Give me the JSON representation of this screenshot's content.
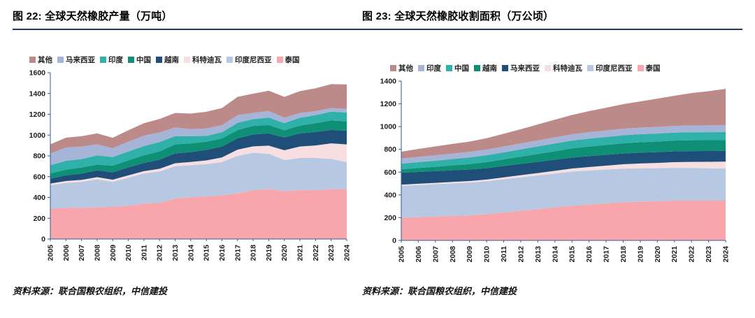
{
  "footer": {
    "source_left": "资料来源：联合国粮农组织，中信建投",
    "source_right": "资料来源：联合国粮农组织，中信建投"
  },
  "chart_data": [
    {
      "type": "area",
      "stacked": true,
      "title": "图 22:  全球天然橡胶产量（万吨）",
      "ylabel": "万吨",
      "ylim": [
        0,
        1600
      ],
      "ytick_step": 200,
      "grid": false,
      "legend_position": "top",
      "axis_color": "#2e5d9b",
      "x": [
        "2005",
        "2006",
        "2007",
        "2008",
        "2009",
        "2010",
        "2011",
        "2012",
        "2013",
        "2014",
        "2015",
        "2016",
        "2017",
        "2018",
        "2019",
        "2020",
        "2021",
        "2022",
        "2023",
        "2024"
      ],
      "series": [
        {
          "name": "其他",
          "color": "#bd8a8a",
          "values": [
            90,
            95,
            100,
            105,
            100,
            110,
            120,
            130,
            140,
            150,
            160,
            165,
            175,
            185,
            195,
            200,
            210,
            220,
            230,
            235
          ]
        },
        {
          "name": "马来西亚",
          "color": "#a6b4d8",
          "values": [
            112,
            128,
            120,
            107,
            86,
            94,
            100,
            92,
            83,
            67,
            72,
            67,
            74,
            60,
            64,
            52,
            47,
            38,
            35,
            35
          ]
        },
        {
          "name": "印度",
          "color": "#2fb0a8",
          "values": [
            77,
            85,
            81,
            88,
            82,
            85,
            89,
            90,
            80,
            70,
            56,
            62,
            69,
            65,
            71,
            69,
            75,
            78,
            85,
            85
          ]
        },
        {
          "name": "中国",
          "color": "#0f8f76",
          "values": [
            51,
            54,
            59,
            55,
            64,
            69,
            73,
            80,
            86,
            84,
            79,
            77,
            80,
            82,
            81,
            69,
            75,
            85,
            90,
            90
          ]
        },
        {
          "name": "越南",
          "color": "#1f4e79",
          "values": [
            47,
            55,
            60,
            66,
            71,
            75,
            79,
            87,
            95,
            95,
            101,
            104,
            109,
            114,
            118,
            123,
            126,
            129,
            130,
            132
          ]
        },
        {
          "name": "科特迪瓦",
          "color": "#f7dfe1",
          "values": [
            17,
            18,
            19,
            20,
            21,
            23,
            23,
            26,
            29,
            31,
            36,
            45,
            60,
            62,
            78,
            94,
            110,
            120,
            150,
            170
          ]
        },
        {
          "name": "印度尼西亚",
          "color": "#b6c8e2",
          "values": [
            227,
            240,
            250,
            270,
            240,
            270,
            290,
            300,
            310,
            310,
            310,
            320,
            360,
            360,
            340,
            300,
            310,
            310,
            290,
            260
          ]
        },
        {
          "name": "泰国",
          "color": "#f8a5ac",
          "values": [
            290,
            300,
            300,
            305,
            310,
            320,
            340,
            350,
            390,
            400,
            410,
            420,
            440,
            470,
            480,
            460,
            470,
            470,
            480,
            480
          ]
        }
      ]
    },
    {
      "type": "area",
      "stacked": true,
      "title": "图 23:  全球天然橡胶收割面积（万公顷）",
      "ylabel": "万公顷",
      "ylim": [
        0,
        1400
      ],
      "ytick_step": 200,
      "grid": false,
      "legend_position": "top",
      "axis_color": "#2e5d9b",
      "x": [
        "2005",
        "2006",
        "2007",
        "2008",
        "2009",
        "2010",
        "2011",
        "2012",
        "2013",
        "2014",
        "2015",
        "2016",
        "2017",
        "2018",
        "2019",
        "2020",
        "2021",
        "2022",
        "2023",
        "2024"
      ],
      "series": [
        {
          "name": "其他",
          "color": "#bd8a8a",
          "values": [
            60,
            70,
            78,
            85,
            90,
            100,
            112,
            125,
            140,
            155,
            170,
            185,
            200,
            215,
            230,
            248,
            265,
            285,
            300,
            320
          ]
        },
        {
          "name": "印度",
          "color": "#a6b4d8",
          "values": [
            45,
            46,
            47,
            48,
            49,
            50,
            51,
            52,
            53,
            54,
            55,
            56,
            57,
            58,
            58,
            59,
            59,
            60,
            60,
            60
          ]
        },
        {
          "name": "中国",
          "color": "#2fb0a8",
          "values": [
            50,
            52,
            54,
            56,
            58,
            60,
            62,
            64,
            66,
            68,
            69,
            70,
            70,
            70,
            70,
            70,
            70,
            70,
            70,
            70
          ]
        },
        {
          "name": "越南",
          "color": "#0f8f76",
          "values": [
            30,
            34,
            38,
            43,
            48,
            53,
            58,
            64,
            70,
            75,
            80,
            84,
            87,
            90,
            92,
            93,
            94,
            95,
            95,
            95
          ]
        },
        {
          "name": "马来西亚",
          "color": "#1f4e79",
          "values": [
            105,
            104,
            103,
            102,
            101,
            100,
            100,
            99,
            98,
            97,
            96,
            96,
            95,
            95,
            95,
            95,
            95,
            95,
            95,
            95
          ]
        },
        {
          "name": "科特迪瓦",
          "color": "#f7dfe1",
          "values": [
            10,
            11,
            12,
            13,
            14,
            15,
            17,
            19,
            21,
            24,
            27,
            30,
            34,
            38,
            42,
            46,
            50,
            54,
            57,
            60
          ]
        },
        {
          "name": "印度尼西亚",
          "color": "#b6c8e2",
          "values": [
            280,
            282,
            284,
            286,
            288,
            290,
            292,
            294,
            296,
            298,
            300,
            300,
            298,
            296,
            294,
            290,
            288,
            286,
            284,
            282
          ]
        },
        {
          "name": "泰国",
          "color": "#f8a5ac",
          "values": [
            200,
            205,
            210,
            215,
            220,
            230,
            245,
            260,
            275,
            290,
            305,
            315,
            325,
            335,
            340,
            345,
            350,
            350,
            350,
            350
          ]
        }
      ]
    }
  ]
}
